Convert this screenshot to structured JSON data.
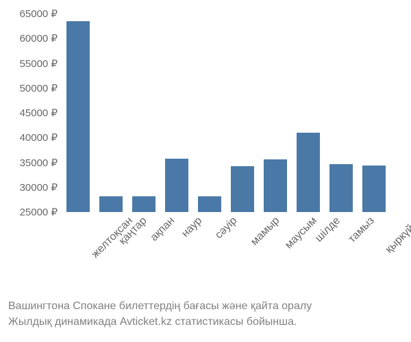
{
  "chart": {
    "type": "bar",
    "categories": [
      "желтоқсан",
      "қаңтар",
      "ақпан",
      "наур",
      "сәуір",
      "мамыр",
      "маусым",
      "шілде",
      "тамыз",
      "қыркүйек"
    ],
    "values": [
      63500,
      28200,
      28200,
      35800,
      28200,
      34200,
      35600,
      41000,
      34600,
      34400
    ],
    "bar_color": "#4a79a8",
    "y_axis": {
      "min": 25000,
      "max": 65000,
      "tick_step": 5000,
      "ticks": [
        25000,
        30000,
        35000,
        40000,
        45000,
        50000,
        55000,
        60000,
        65000
      ],
      "suffix": " ₽"
    },
    "background_color": "#ffffff",
    "label_color": "#666666",
    "label_fontsize": 15,
    "bar_width": 0.7
  },
  "caption": {
    "line1": "Вашингтона Спокане билеттердің бағасы және қайта оралу",
    "line2": "Жылдық динамикада Avticket.kz статистикасы бойынша.",
    "color": "#808080",
    "fontsize": 16
  }
}
